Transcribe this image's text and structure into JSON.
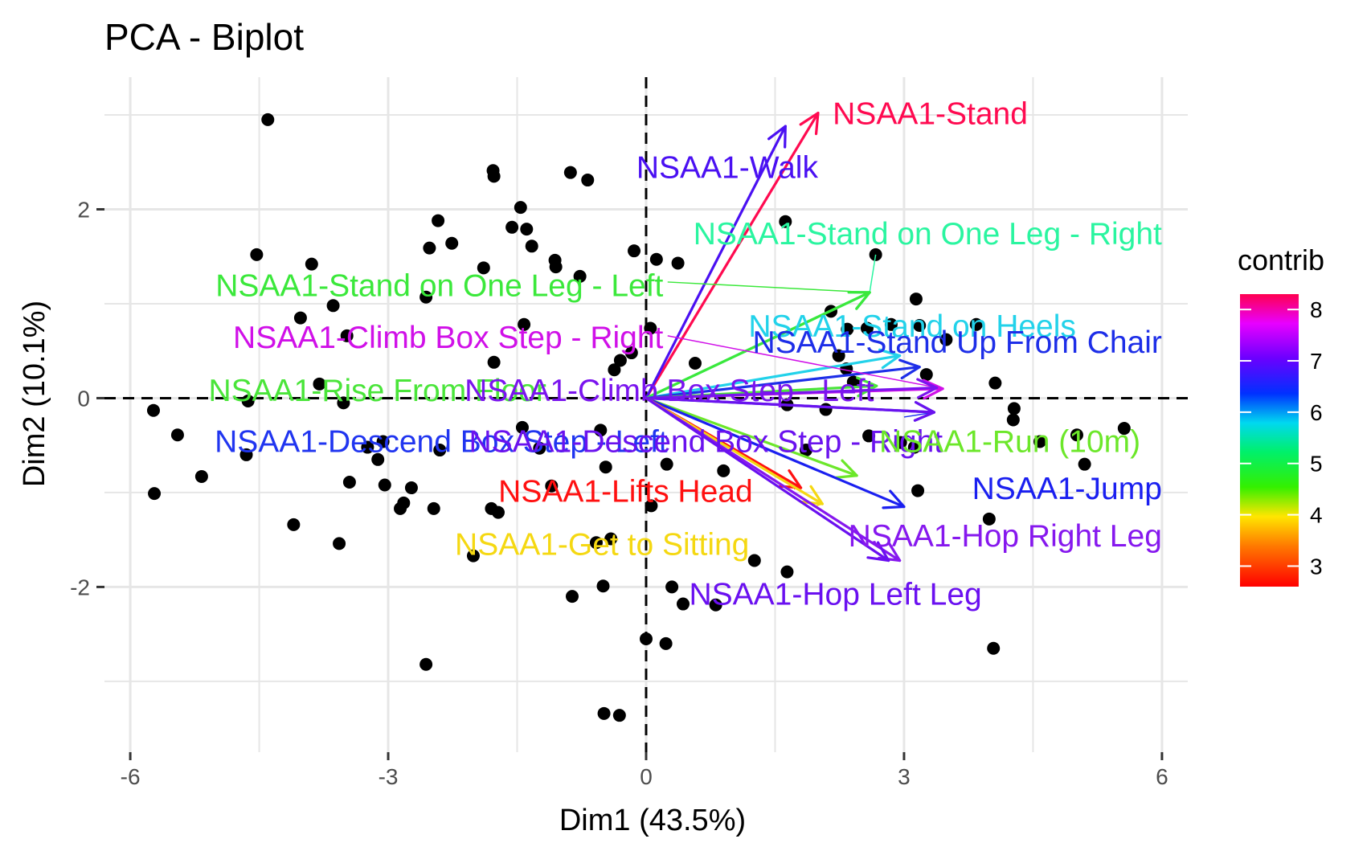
{
  "chart_data": {
    "type": "scatter",
    "title": "PCA - Biplot",
    "xlabel": "Dim1 (43.5%)",
    "ylabel": "Dim2 (10.1%)",
    "xlim": [
      -6.3,
      6.3
    ],
    "ylim": [
      -3.75,
      3.4
    ],
    "x_ticks": [
      -6,
      -3,
      0,
      3,
      6
    ],
    "x_tick_labels": [
      "-6",
      "-3",
      "0",
      "3",
      "6"
    ],
    "y_ticks": [
      -2,
      0,
      2
    ],
    "y_tick_labels": [
      "-2",
      "0",
      "2"
    ],
    "grid": true,
    "legend": {
      "title": "contrib",
      "placement": "right",
      "min": 2.6,
      "max": 8.3,
      "tick_values": [
        3,
        4,
        5,
        6,
        7,
        8
      ],
      "tick_labels": [
        "3",
        "4",
        "5",
        "6",
        "7",
        "8"
      ]
    },
    "points": [
      [
        -4.4,
        2.95
      ],
      [
        -1.78,
        2.41
      ],
      [
        -1.77,
        2.35
      ],
      [
        -0.88,
        2.39
      ],
      [
        -0.68,
        2.31
      ],
      [
        -1.46,
        2.02
      ],
      [
        -1.39,
        1.79
      ],
      [
        -1.56,
        1.81
      ],
      [
        -1.33,
        1.61
      ],
      [
        -2.42,
        1.88
      ],
      [
        -2.52,
        1.59
      ],
      [
        -2.26,
        1.64
      ],
      [
        -4.53,
        1.52
      ],
      [
        -3.89,
        1.42
      ],
      [
        -1.89,
        1.38
      ],
      [
        -1.06,
        1.46
      ],
      [
        -1.05,
        1.39
      ],
      [
        -0.77,
        1.29
      ],
      [
        -0.14,
        1.56
      ],
      [
        0.12,
        1.47
      ],
      [
        0.37,
        1.43
      ],
      [
        1.62,
        1.87
      ],
      [
        2.67,
        1.52
      ],
      [
        -2.56,
        1.07
      ],
      [
        -3.64,
        0.98
      ],
      [
        -4.02,
        0.85
      ],
      [
        -3.48,
        0.66
      ],
      [
        -1.42,
        0.78
      ],
      [
        0.05,
        0.74
      ],
      [
        2.15,
        0.92
      ],
      [
        2.34,
        0.73
      ],
      [
        2.57,
        0.74
      ],
      [
        2.85,
        0.78
      ],
      [
        3.14,
        1.05
      ],
      [
        3.18,
        0.77
      ],
      [
        3.49,
        0.62
      ],
      [
        3.84,
        0.78
      ],
      [
        -0.3,
        0.4
      ],
      [
        -0.17,
        0.48
      ],
      [
        0.57,
        0.37
      ],
      [
        -0.37,
        0.3
      ],
      [
        -1.77,
        0.38
      ],
      [
        2.24,
        0.45
      ],
      [
        2.33,
        0.31
      ],
      [
        2.41,
        0.17
      ],
      [
        3.26,
        0.25
      ],
      [
        4.06,
        0.16
      ],
      [
        -3.8,
        0.15
      ],
      [
        -4.63,
        -0.03
      ],
      [
        -3.52,
        -0.05
      ],
      [
        -5.73,
        -0.13
      ],
      [
        -5.45,
        -0.39
      ],
      [
        -4.65,
        -0.6
      ],
      [
        -5.17,
        -0.83
      ],
      [
        -5.72,
        -1.01
      ],
      [
        -4.1,
        -1.34
      ],
      [
        -3.57,
        -1.54
      ],
      [
        -3.45,
        -0.89
      ],
      [
        -3.24,
        -0.52
      ],
      [
        -3.12,
        -0.65
      ],
      [
        -3.06,
        -0.46
      ],
      [
        -3.04,
        -0.92
      ],
      [
        -2.86,
        -1.17
      ],
      [
        -2.82,
        -1.11
      ],
      [
        -2.73,
        -0.95
      ],
      [
        -2.47,
        -1.17
      ],
      [
        -2.4,
        -0.55
      ],
      [
        -1.8,
        -1.17
      ],
      [
        -1.72,
        -1.21
      ],
      [
        -1.44,
        -0.31
      ],
      [
        -1.24,
        -0.53
      ],
      [
        -1.1,
        -0.93
      ],
      [
        -0.53,
        -0.34
      ],
      [
        -0.47,
        -0.73
      ],
      [
        -0.41,
        -1.49
      ],
      [
        -0.58,
        -1.53
      ],
      [
        -0.86,
        -2.1
      ],
      [
        -0.5,
        -1.99
      ],
      [
        -2.01,
        -1.67
      ],
      [
        0.06,
        -1.14
      ],
      [
        0.24,
        -0.7
      ],
      [
        0.9,
        -0.77
      ],
      [
        1.26,
        -1.72
      ],
      [
        1.64,
        -1.84
      ],
      [
        0.3,
        -2.0
      ],
      [
        0.43,
        -2.18
      ],
      [
        0.81,
        -2.19
      ],
      [
        1.64,
        -0.07
      ],
      [
        2.09,
        -0.12
      ],
      [
        1.86,
        -0.55
      ],
      [
        2.59,
        -0.4
      ],
      [
        2.96,
        -0.47
      ],
      [
        3.12,
        -0.52
      ],
      [
        3.16,
        -0.98
      ],
      [
        4.28,
        -0.11
      ],
      [
        4.27,
        -0.23
      ],
      [
        4.58,
        -0.46
      ],
      [
        5.01,
        -0.39
      ],
      [
        5.1,
        -0.7
      ],
      [
        5.56,
        -0.32
      ],
      [
        3.99,
        -1.28
      ],
      [
        4.04,
        -2.65
      ],
      [
        0.0,
        -2.55
      ],
      [
        0.23,
        -2.6
      ],
      [
        -2.56,
        -2.82
      ],
      [
        -0.49,
        -3.34
      ],
      [
        -0.31,
        -3.36
      ]
    ],
    "arrows": [
      {
        "label": "NSAA1-Stand",
        "x": 2.0,
        "y": 3.02,
        "contrib": 8.3,
        "color": "#ff0a50",
        "label_x": 2.17,
        "label_y": 3.02,
        "anchor": "start"
      },
      {
        "label": "NSAA1-Walk",
        "x": 1.62,
        "y": 2.88,
        "contrib": 7.2,
        "color": "#4a10f2",
        "label_x": 2.0,
        "label_y": 2.45,
        "anchor": "end"
      },
      {
        "label": "NSAA1-Stand on One Leg - Right",
        "x": 2.6,
        "y": 1.12,
        "contrib": 5.1,
        "color": "#2af5a0",
        "label_x": 6.0,
        "label_y": 1.75,
        "anchor": "end",
        "leader": [
          2.67,
          1.52
        ]
      },
      {
        "label": "NSAA1-Stand on One Leg - Left",
        "x": 2.6,
        "y": 1.12,
        "contrib": 4.8,
        "color": "#3be83b",
        "label_x": 0.2,
        "label_y": 1.2,
        "anchor": "end",
        "leader": [
          0.25,
          1.23
        ]
      },
      {
        "label": "NSAA1-Stand on Heels",
        "x": 2.95,
        "y": 0.45,
        "contrib": 5.6,
        "color": "#22d2ea",
        "label_x": 5.0,
        "label_y": 0.77,
        "anchor": "end"
      },
      {
        "label": "NSAA1-Stand Up From Chair",
        "x": 3.18,
        "y": 0.33,
        "contrib": 6.2,
        "color": "#1d2ee8",
        "label_x": 6.0,
        "label_y": 0.6,
        "anchor": "end"
      },
      {
        "label": "NSAA1-Climb Box Step - Right",
        "x": 3.45,
        "y": 0.1,
        "contrib": 7.9,
        "color": "#d010e8",
        "label_x": 0.2,
        "label_y": 0.65,
        "anchor": "end",
        "leader": [
          0.25,
          0.66
        ]
      },
      {
        "label": "NSAA1-Rise From Floor",
        "x": 2.68,
        "y": 0.13,
        "contrib": 4.5,
        "color": "#4ae53a",
        "label_x": -1.16,
        "label_y": 0.09,
        "anchor": "end"
      },
      {
        "label": "NSAA1-Climb Box Step - Left",
        "x": 3.38,
        "y": 0.11,
        "contrib": 7.4,
        "color": "#7a14ee",
        "label_x": 2.65,
        "label_y": 0.09,
        "anchor": "end"
      },
      {
        "label": "NSAA1-Descend Box Step - Left",
        "x": 3.35,
        "y": -0.15,
        "contrib": 6.6,
        "color": "#2035f0",
        "label_x": 0.25,
        "label_y": -0.45,
        "anchor": "end",
        "leader": [
          3.0,
          -0.2
        ]
      },
      {
        "label": "NSAA1-Descend Box Step - Right",
        "x": 3.35,
        "y": -0.15,
        "contrib": 7.0,
        "color": "#6a12ee",
        "label_x": 3.45,
        "label_y": -0.45,
        "anchor": "end"
      },
      {
        "label": "NSAA1-Run (10m)",
        "x": 2.45,
        "y": -0.82,
        "contrib": 4.6,
        "color": "#6ce72a",
        "label_x": 5.75,
        "label_y": -0.45,
        "anchor": "end"
      },
      {
        "label": "NSAA1-Jump",
        "x": 3.0,
        "y": -1.15,
        "contrib": 6.4,
        "color": "#1a1ff0",
        "label_x": 6.0,
        "label_y": -0.95,
        "anchor": "end"
      },
      {
        "label": "NSAA1-Lifts Head",
        "x": 1.8,
        "y": -0.95,
        "contrib": 2.6,
        "color": "#ff1010",
        "label_x": 1.24,
        "label_y": -0.98,
        "anchor": "end",
        "leader": [
          1.72,
          -0.96
        ]
      },
      {
        "label": "NSAA1-Get to Sitting",
        "x": 2.05,
        "y": -1.12,
        "contrib": 3.5,
        "color": "#f5d812",
        "label_x": 1.2,
        "label_y": -1.54,
        "anchor": "end",
        "leader": [
          1.95,
          -1.15
        ]
      },
      {
        "label": "NSAA1-Hop Right Leg",
        "x": 2.95,
        "y": -1.72,
        "contrib": 7.3,
        "color": "#8618ee",
        "label_x": 6.0,
        "label_y": -1.45,
        "anchor": "end"
      },
      {
        "label": "NSAA1-Hop Left Leg",
        "x": 2.82,
        "y": -1.72,
        "contrib": 7.0,
        "color": "#6a10f0",
        "label_x": 0.5,
        "label_y": -2.07,
        "anchor": "start"
      }
    ]
  }
}
